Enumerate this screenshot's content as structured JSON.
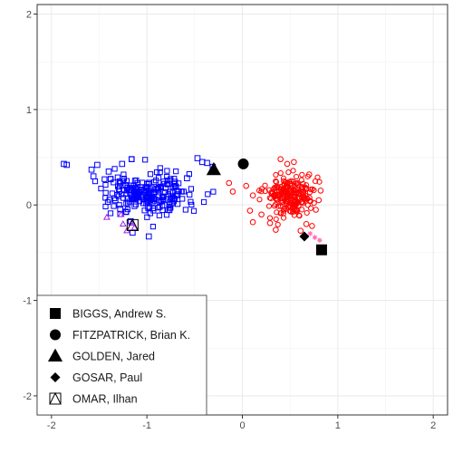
{
  "chart_data": {
    "type": "scatter",
    "title": "",
    "xlabel": "",
    "ylabel": "",
    "xlim": [
      -2.15,
      2.15
    ],
    "ylim": [
      -2.2,
      2.1
    ],
    "grid": true,
    "x_ticks": [
      {
        "value": -2,
        "label": "-2"
      },
      {
        "value": -1,
        "label": "-1"
      },
      {
        "value": 0,
        "label": "0"
      },
      {
        "value": 1,
        "label": "1"
      },
      {
        "value": 2,
        "label": "2"
      }
    ],
    "y_ticks": [
      {
        "value": 2,
        "label": "2"
      },
      {
        "value": 1,
        "label": "1"
      },
      {
        "value": 0,
        "label": "0"
      },
      {
        "value": -1,
        "label": "-1"
      },
      {
        "value": -2,
        "label": "-2"
      }
    ],
    "legend_position": "bottom-left",
    "colors": {
      "democrat_points": "#0000ff",
      "republican_points": "#ff0000",
      "purple_points": "#a020f0",
      "pink_points": "#ff69b4",
      "highlight": "#000000"
    },
    "point_clouds": [
      {
        "shape": "open-square",
        "color": "#0000ff",
        "center": [
          -0.97,
          0.12
        ],
        "spread": [
          0.22,
          0.11
        ],
        "count": 230,
        "seed": 7
      },
      {
        "shape": "open-circle",
        "color": "#ff0000",
        "center": [
          0.48,
          0.1
        ],
        "spread": [
          0.13,
          0.1
        ],
        "count": 230,
        "seed": 19
      }
    ],
    "series": [
      {
        "shape": "open-square",
        "color": "#0000ff",
        "points": [
          [
            -1.87,
            0.43
          ],
          [
            -1.84,
            0.42
          ],
          [
            -1.52,
            0.42
          ],
          [
            -1.56,
            0.3
          ],
          [
            -1.58,
            0.37
          ],
          [
            -1.4,
            0.35
          ],
          [
            -1.38,
            0.27
          ],
          [
            -1.26,
            0.43
          ],
          [
            -1.16,
            0.48
          ],
          [
            -0.47,
            0.49
          ],
          [
            -0.42,
            0.45
          ],
          [
            -0.37,
            0.44
          ],
          [
            -0.31,
            0.4
          ],
          [
            -1.15,
            -0.29
          ],
          [
            -1.17,
            -0.17
          ],
          [
            -1.22,
            -0.07
          ],
          [
            -1.28,
            -0.04
          ],
          [
            -0.98,
            -0.33
          ],
          [
            -1.33,
            0.05
          ],
          [
            -0.58,
            0.28
          ]
        ]
      },
      {
        "shape": "open-triangle",
        "color": "#a020f0",
        "points": [
          [
            -1.42,
            -0.13
          ],
          [
            -1.27,
            -0.1
          ],
          [
            -1.25,
            -0.2
          ],
          [
            -1.21,
            -0.27
          ],
          [
            -1.13,
            -0.24
          ],
          [
            -1.16,
            -0.19
          ]
        ]
      },
      {
        "shape": "open-circle",
        "color": "#ff0000",
        "points": [
          [
            -0.14,
            0.23
          ],
          [
            -0.1,
            0.14
          ],
          [
            0.04,
            0.2
          ],
          [
            0.11,
            0.1
          ],
          [
            0.08,
            -0.06
          ],
          [
            0.11,
            -0.18
          ],
          [
            0.2,
            -0.1
          ],
          [
            0.29,
            -0.19
          ],
          [
            0.35,
            -0.26
          ],
          [
            0.4,
            0.48
          ],
          [
            0.47,
            0.43
          ],
          [
            0.54,
            0.45
          ],
          [
            0.61,
            -0.27
          ],
          [
            0.67,
            -0.2
          ],
          [
            0.73,
            -0.22
          ],
          [
            0.77,
            -0.05
          ],
          [
            0.8,
            0.05
          ],
          [
            0.82,
            0.15
          ],
          [
            0.7,
            0.32
          ]
        ]
      },
      {
        "shape": "star",
        "color": "#ff69b4",
        "points": [
          [
            0.71,
            -0.3
          ],
          [
            0.76,
            -0.34
          ],
          [
            0.81,
            -0.37
          ]
        ]
      }
    ],
    "highlights": [
      {
        "name": "BIGGS, Andrew S.",
        "shape": "filled-square",
        "x": 0.83,
        "y": -0.47
      },
      {
        "name": "FITZPATRICK, Brian K.",
        "shape": "filled-circle",
        "x": 0.01,
        "y": 0.43
      },
      {
        "name": "GOLDEN, Jared",
        "shape": "filled-triangle",
        "x": -0.3,
        "y": 0.37
      },
      {
        "name": "GOSAR, Paul",
        "shape": "filled-diamond",
        "x": 0.65,
        "y": -0.33
      },
      {
        "name": "OMAR, Ilhan",
        "shape": "open-triangle-in-square",
        "x": -1.15,
        "y": -0.21
      }
    ],
    "legend": [
      {
        "label": "BIGGS, Andrew S.",
        "shape": "filled-square"
      },
      {
        "label": "FITZPATRICK, Brian K.",
        "shape": "filled-circle"
      },
      {
        "label": "GOLDEN, Jared",
        "shape": "filled-triangle"
      },
      {
        "label": "GOSAR, Paul",
        "shape": "filled-diamond"
      },
      {
        "label": "OMAR, Ilhan",
        "shape": "open-triangle-in-square"
      }
    ]
  }
}
